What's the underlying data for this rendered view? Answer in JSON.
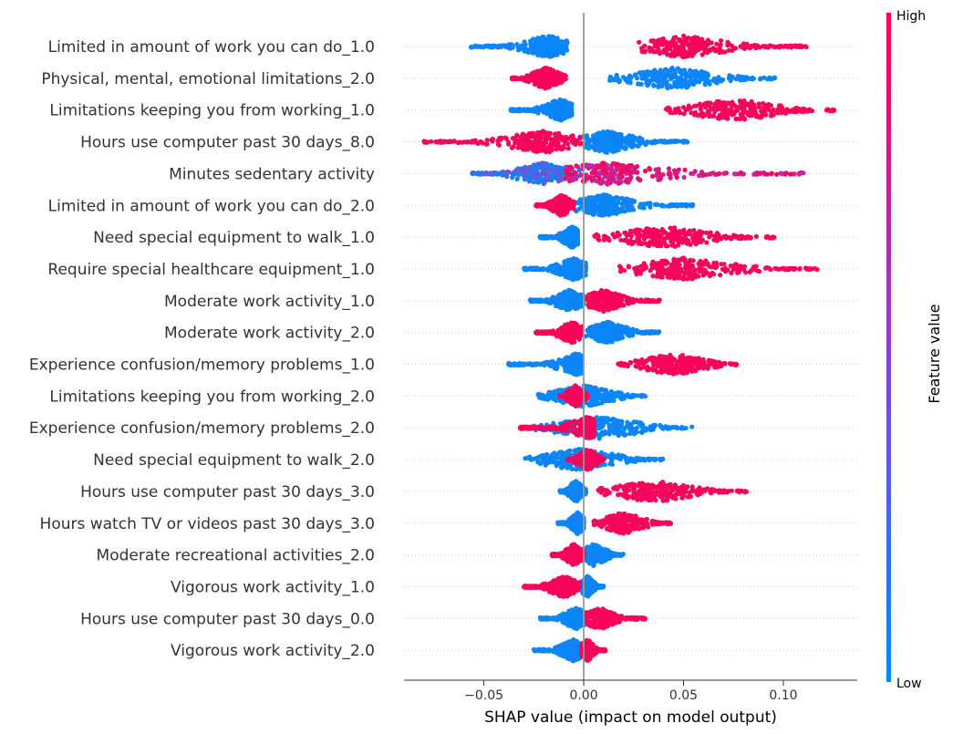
{
  "chart_data": {
    "type": "scatter",
    "subtype": "shap-beeswarm",
    "title": "",
    "xlabel": "SHAP value (impact on model output)",
    "ylabel": "",
    "xlim": [
      -0.09,
      0.137
    ],
    "x_ticks": [
      -0.05,
      0.0,
      0.05,
      0.1
    ],
    "x_tick_labels": [
      "−0.05",
      "0.00",
      "0.05",
      "0.10"
    ],
    "zero_line": 0.0,
    "grid": false,
    "colors": {
      "low": "#008bfb",
      "high": "#ff0052",
      "mid": "#a03cc8",
      "zero_line": "#999999",
      "row_guide": "#cccccc"
    },
    "colorbar": {
      "title": "Feature value",
      "high_label": "High",
      "low_label": "Low",
      "placement": "right"
    },
    "features": [
      {
        "name": "Limited in amount of work you can do_1.0",
        "low": {
          "min": -0.057,
          "max": -0.008,
          "center": -0.018
        },
        "high": {
          "min": 0.027,
          "max": 0.112,
          "center": 0.05
        },
        "high_side": "right"
      },
      {
        "name": "Physical, mental, emotional limitations_2.0",
        "low": {
          "min": 0.013,
          "max": 0.096,
          "center": 0.045
        },
        "high": {
          "min": -0.036,
          "max": -0.009,
          "center": -0.019
        },
        "high_side": "left"
      },
      {
        "name": "Limitations keeping you from working_1.0",
        "low": {
          "min": -0.037,
          "max": -0.006,
          "center": -0.012
        },
        "high": {
          "min": 0.041,
          "max": 0.126,
          "center": 0.075
        },
        "high_side": "right"
      },
      {
        "name": "Hours use computer past 30 days_8.0",
        "low": {
          "min": 0.0,
          "max": 0.053,
          "center": 0.012
        },
        "high": {
          "min": -0.08,
          "max": -0.0,
          "center": -0.02
        },
        "high_side": "left"
      },
      {
        "name": "Minutes sedentary activity",
        "low": {
          "min": -0.056,
          "max": -0.002,
          "center": -0.02
        },
        "high": {
          "min": -0.01,
          "max": 0.11,
          "center": 0.012
        },
        "high_side": "right"
      },
      {
        "name": "Limited in amount of work you can do_2.0",
        "low": {
          "min": -0.005,
          "max": 0.055,
          "center": 0.01
        },
        "high": {
          "min": -0.024,
          "max": -0.005,
          "center": -0.011
        },
        "high_side": "left"
      },
      {
        "name": "Need special equipment to walk_1.0",
        "low": {
          "min": -0.022,
          "max": -0.003,
          "center": -0.006
        },
        "high": {
          "min": 0.005,
          "max": 0.096,
          "center": 0.04
        },
        "high_side": "right"
      },
      {
        "name": "Require special healthcare equipment_1.0",
        "low": {
          "min": -0.03,
          "max": 0.001,
          "center": -0.005
        },
        "high": {
          "min": 0.018,
          "max": 0.118,
          "center": 0.05
        },
        "high_side": "right"
      },
      {
        "name": "Moderate work activity_1.0",
        "low": {
          "min": -0.027,
          "max": 0.0,
          "center": -0.007
        },
        "high": {
          "min": 0.002,
          "max": 0.038,
          "center": 0.01
        },
        "high_side": "right"
      },
      {
        "name": "Moderate work activity_2.0",
        "low": {
          "min": 0.001,
          "max": 0.038,
          "center": 0.012
        },
        "high": {
          "min": -0.024,
          "max": -0.001,
          "center": -0.006
        },
        "high_side": "left"
      },
      {
        "name": "Experience confusion/memory problems_1.0",
        "low": {
          "min": -0.038,
          "max": -0.001,
          "center": -0.004
        },
        "high": {
          "min": 0.017,
          "max": 0.077,
          "center": 0.045
        },
        "high_side": "right"
      },
      {
        "name": "Limitations keeping you from working_2.0",
        "low": {
          "min": -0.023,
          "max": 0.032,
          "center": 0.0
        },
        "high": {
          "min": -0.012,
          "max": 0.002,
          "center": -0.004
        },
        "high_side": "left"
      },
      {
        "name": "Experience confusion/memory problems_2.0",
        "low": {
          "min": -0.026,
          "max": 0.055,
          "center": 0.008
        },
        "high": {
          "min": -0.032,
          "max": 0.005,
          "center": 0.002
        },
        "high_side": "left"
      },
      {
        "name": "Need special equipment to walk_2.0",
        "low": {
          "min": -0.031,
          "max": 0.04,
          "center": -0.002
        },
        "high": {
          "min": -0.008,
          "max": 0.01,
          "center": 0.002
        },
        "high_side": "right"
      },
      {
        "name": "Hours use computer past 30 days_3.0",
        "low": {
          "min": -0.012,
          "max": 0.001,
          "center": -0.004
        },
        "high": {
          "min": 0.007,
          "max": 0.082,
          "center": 0.035
        },
        "high_side": "right"
      },
      {
        "name": "Hours watch TV or videos past 30 days_3.0",
        "low": {
          "min": -0.013,
          "max": 0.0,
          "center": -0.003
        },
        "high": {
          "min": 0.005,
          "max": 0.044,
          "center": 0.02
        },
        "high_side": "right"
      },
      {
        "name": "Moderate recreational activities_2.0",
        "low": {
          "min": -0.005,
          "max": 0.02,
          "center": 0.005
        },
        "high": {
          "min": -0.016,
          "max": 0.0,
          "center": -0.005
        },
        "high_side": "left"
      },
      {
        "name": "Vigorous work activity_1.0",
        "low": {
          "min": -0.002,
          "max": 0.01,
          "center": 0.002
        },
        "high": {
          "min": -0.03,
          "max": -0.002,
          "center": -0.01
        },
        "high_side": "left"
      },
      {
        "name": "Hours use computer past 30 days_0.0",
        "low": {
          "min": -0.022,
          "max": 0.001,
          "center": -0.004
        },
        "high": {
          "min": 0.001,
          "max": 0.031,
          "center": 0.008
        },
        "high_side": "right"
      },
      {
        "name": "Vigorous work activity_2.0",
        "low": {
          "min": -0.025,
          "max": 0.0,
          "center": -0.005
        },
        "high": {
          "min": -0.001,
          "max": 0.011,
          "center": 0.002
        },
        "high_side": "right"
      }
    ]
  }
}
